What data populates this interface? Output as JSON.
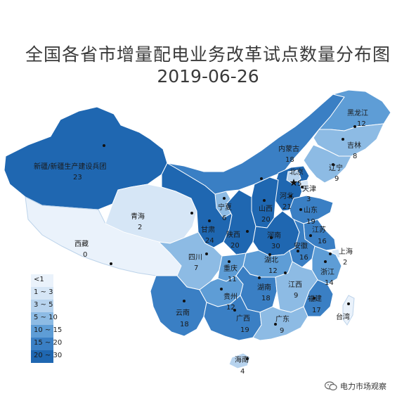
{
  "title": "全国各省市增量配电业务改革试点数量分布图",
  "date": "2019-06-26",
  "watermark": "电力市场观察",
  "colors": {
    "c0": "#eaf2fb",
    "c1": "#d6e6f6",
    "c2": "#b7d3ee",
    "c3": "#8dbbe4",
    "c4": "#5e9dd6",
    "c5": "#3a7fc4",
    "c6": "#1f67b1"
  },
  "legend": [
    {
      "label": "<1",
      "color": "#eaf2fb"
    },
    {
      "label": "1 ~ 3",
      "color": "#d6e6f6"
    },
    {
      "label": "3 ~ 5",
      "color": "#b7d3ee"
    },
    {
      "label": "5 ~ 10",
      "color": "#8dbbe4"
    },
    {
      "label": "10 ~ 15",
      "color": "#5e9dd6"
    },
    {
      "label": "15 ~ 20",
      "color": "#3a7fc4"
    },
    {
      "label": "20 ~ 30",
      "color": "#1f67b1"
    }
  ],
  "provinces": [
    {
      "name": "新疆/新疆生产建设兵团",
      "value": "23"
    },
    {
      "name": "西藏",
      "value": "0"
    },
    {
      "name": "青海",
      "value": "2"
    },
    {
      "name": "甘肃",
      "value": "24"
    },
    {
      "name": "宁夏",
      "value": "6"
    },
    {
      "name": "内蒙古",
      "value": "18"
    },
    {
      "name": "黑龙江",
      "value": "12"
    },
    {
      "name": "吉林",
      "value": "8"
    },
    {
      "name": "辽宁",
      "value": "9"
    },
    {
      "name": "北京",
      "value": "5"
    },
    {
      "name": "天津",
      "value": "3"
    },
    {
      "name": "河北",
      "value": "21"
    },
    {
      "name": "山西",
      "value": "20"
    },
    {
      "name": "山东",
      "value": "19"
    },
    {
      "name": "陕西",
      "value": "20"
    },
    {
      "name": "河南",
      "value": "30"
    },
    {
      "name": "江苏",
      "value": "16"
    },
    {
      "name": "安徽",
      "value": "16"
    },
    {
      "name": "上海",
      "value": "2"
    },
    {
      "name": "四川",
      "value": "7"
    },
    {
      "name": "重庆",
      "value": "11"
    },
    {
      "name": "湖北",
      "value": "12"
    },
    {
      "name": "浙江",
      "value": "14"
    },
    {
      "name": "贵州",
      "value": "12"
    },
    {
      "name": "湖南",
      "value": "18"
    },
    {
      "name": "江西",
      "value": "9"
    },
    {
      "name": "福建",
      "value": "17"
    },
    {
      "name": "云南",
      "value": "18"
    },
    {
      "name": "广西",
      "value": "19"
    },
    {
      "name": "广东",
      "value": "9"
    },
    {
      "name": "台湾",
      "value": ""
    },
    {
      "name": "海南",
      "value": "4"
    }
  ]
}
